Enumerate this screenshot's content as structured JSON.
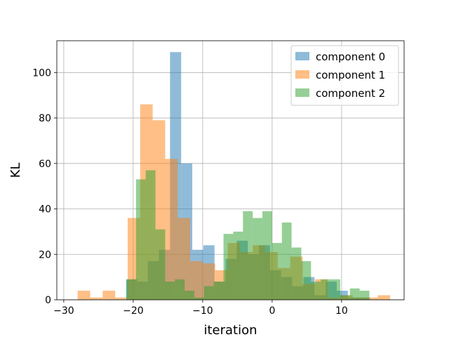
{
  "chart_data": {
    "type": "histogram",
    "title": "",
    "xlabel": "iteration",
    "ylabel": "KL",
    "xlim": [
      -31,
      19
    ],
    "ylim": [
      0,
      114
    ],
    "xticks": [
      -30,
      -20,
      -10,
      0,
      10
    ],
    "yticks": [
      0,
      20,
      40,
      60,
      80,
      100
    ],
    "xtick_labels": [
      "−30",
      "−20",
      "−10",
      "0",
      "10"
    ],
    "ytick_labels": [
      "0",
      "20",
      "40",
      "60",
      "80",
      "100"
    ],
    "grid": true,
    "legend_position": "top-right",
    "opacity": 0.5,
    "series": [
      {
        "name": "component 0",
        "color": "#1f77b4",
        "bins": [
          [
            -21.0,
            -19.4,
            9
          ],
          [
            -19.4,
            -17.9,
            8
          ],
          [
            -17.9,
            -16.3,
            17
          ],
          [
            -16.3,
            -14.7,
            22
          ],
          [
            -14.7,
            -13.1,
            109
          ],
          [
            -13.1,
            -11.5,
            60
          ],
          [
            -11.5,
            -9.9,
            22
          ],
          [
            -9.9,
            -8.3,
            24
          ],
          [
            -8.3,
            -6.7,
            8
          ],
          [
            -6.7,
            -5.1,
            18
          ],
          [
            -5.1,
            -3.5,
            26
          ],
          [
            -3.5,
            -1.9,
            20
          ],
          [
            -1.9,
            -0.3,
            24
          ],
          [
            -0.3,
            1.3,
            13
          ],
          [
            1.3,
            2.9,
            10
          ],
          [
            2.9,
            4.5,
            6
          ],
          [
            4.5,
            6.1,
            10
          ],
          [
            6.1,
            7.7,
            2
          ],
          [
            7.7,
            9.3,
            8
          ],
          [
            9.3,
            10.9,
            4
          ],
          [
            10.9,
            12.5,
            1
          ],
          [
            12.5,
            14.1,
            1
          ]
        ]
      },
      {
        "name": "component 1",
        "color": "#ff7f0e",
        "bins": [
          [
            -28.0,
            -26.2,
            4
          ],
          [
            -26.2,
            -24.4,
            1
          ],
          [
            -24.4,
            -22.6,
            4
          ],
          [
            -22.6,
            -20.8,
            1
          ],
          [
            -20.8,
            -19.0,
            36
          ],
          [
            -19.0,
            -17.2,
            86
          ],
          [
            -17.2,
            -15.4,
            79
          ],
          [
            -15.4,
            -13.6,
            62
          ],
          [
            -13.6,
            -11.8,
            36
          ],
          [
            -11.8,
            -10.0,
            17
          ],
          [
            -10.0,
            -8.2,
            16
          ],
          [
            -8.2,
            -6.4,
            13
          ],
          [
            -6.4,
            -4.6,
            25
          ],
          [
            -4.6,
            -2.8,
            21
          ],
          [
            -2.8,
            -1.0,
            24
          ],
          [
            -1.0,
            0.8,
            21
          ],
          [
            0.8,
            2.6,
            14
          ],
          [
            2.6,
            4.4,
            19
          ],
          [
            4.4,
            6.2,
            7
          ],
          [
            6.2,
            8.0,
            9
          ],
          [
            8.0,
            9.8,
            1
          ],
          [
            9.8,
            11.6,
            2
          ],
          [
            11.6,
            13.4,
            1
          ],
          [
            13.4,
            15.2,
            1
          ],
          [
            15.2,
            17.0,
            2
          ]
        ]
      },
      {
        "name": "component 2",
        "color": "#2ca02c",
        "bins": [
          [
            -21.0,
            -19.6,
            9
          ],
          [
            -19.6,
            -18.2,
            53
          ],
          [
            -18.2,
            -16.8,
            57
          ],
          [
            -16.8,
            -15.4,
            31
          ],
          [
            -15.4,
            -14.0,
            8
          ],
          [
            -14.0,
            -12.6,
            9
          ],
          [
            -12.6,
            -11.2,
            4
          ],
          [
            -11.2,
            -9.8,
            1
          ],
          [
            -9.8,
            -8.4,
            6
          ],
          [
            -8.4,
            -7.0,
            8
          ],
          [
            -7.0,
            -5.6,
            29
          ],
          [
            -5.6,
            -4.2,
            30
          ],
          [
            -4.2,
            -2.8,
            39
          ],
          [
            -2.8,
            -1.4,
            36
          ],
          [
            -1.4,
            0.0,
            39
          ],
          [
            0.0,
            1.4,
            25
          ],
          [
            1.4,
            2.8,
            34
          ],
          [
            2.8,
            4.2,
            23
          ],
          [
            4.2,
            5.6,
            17
          ],
          [
            5.6,
            7.0,
            8
          ],
          [
            7.0,
            8.4,
            9
          ],
          [
            8.4,
            9.8,
            9
          ],
          [
            9.8,
            11.2,
            2
          ],
          [
            11.2,
            12.6,
            5
          ],
          [
            12.6,
            14.0,
            4
          ]
        ]
      }
    ]
  }
}
